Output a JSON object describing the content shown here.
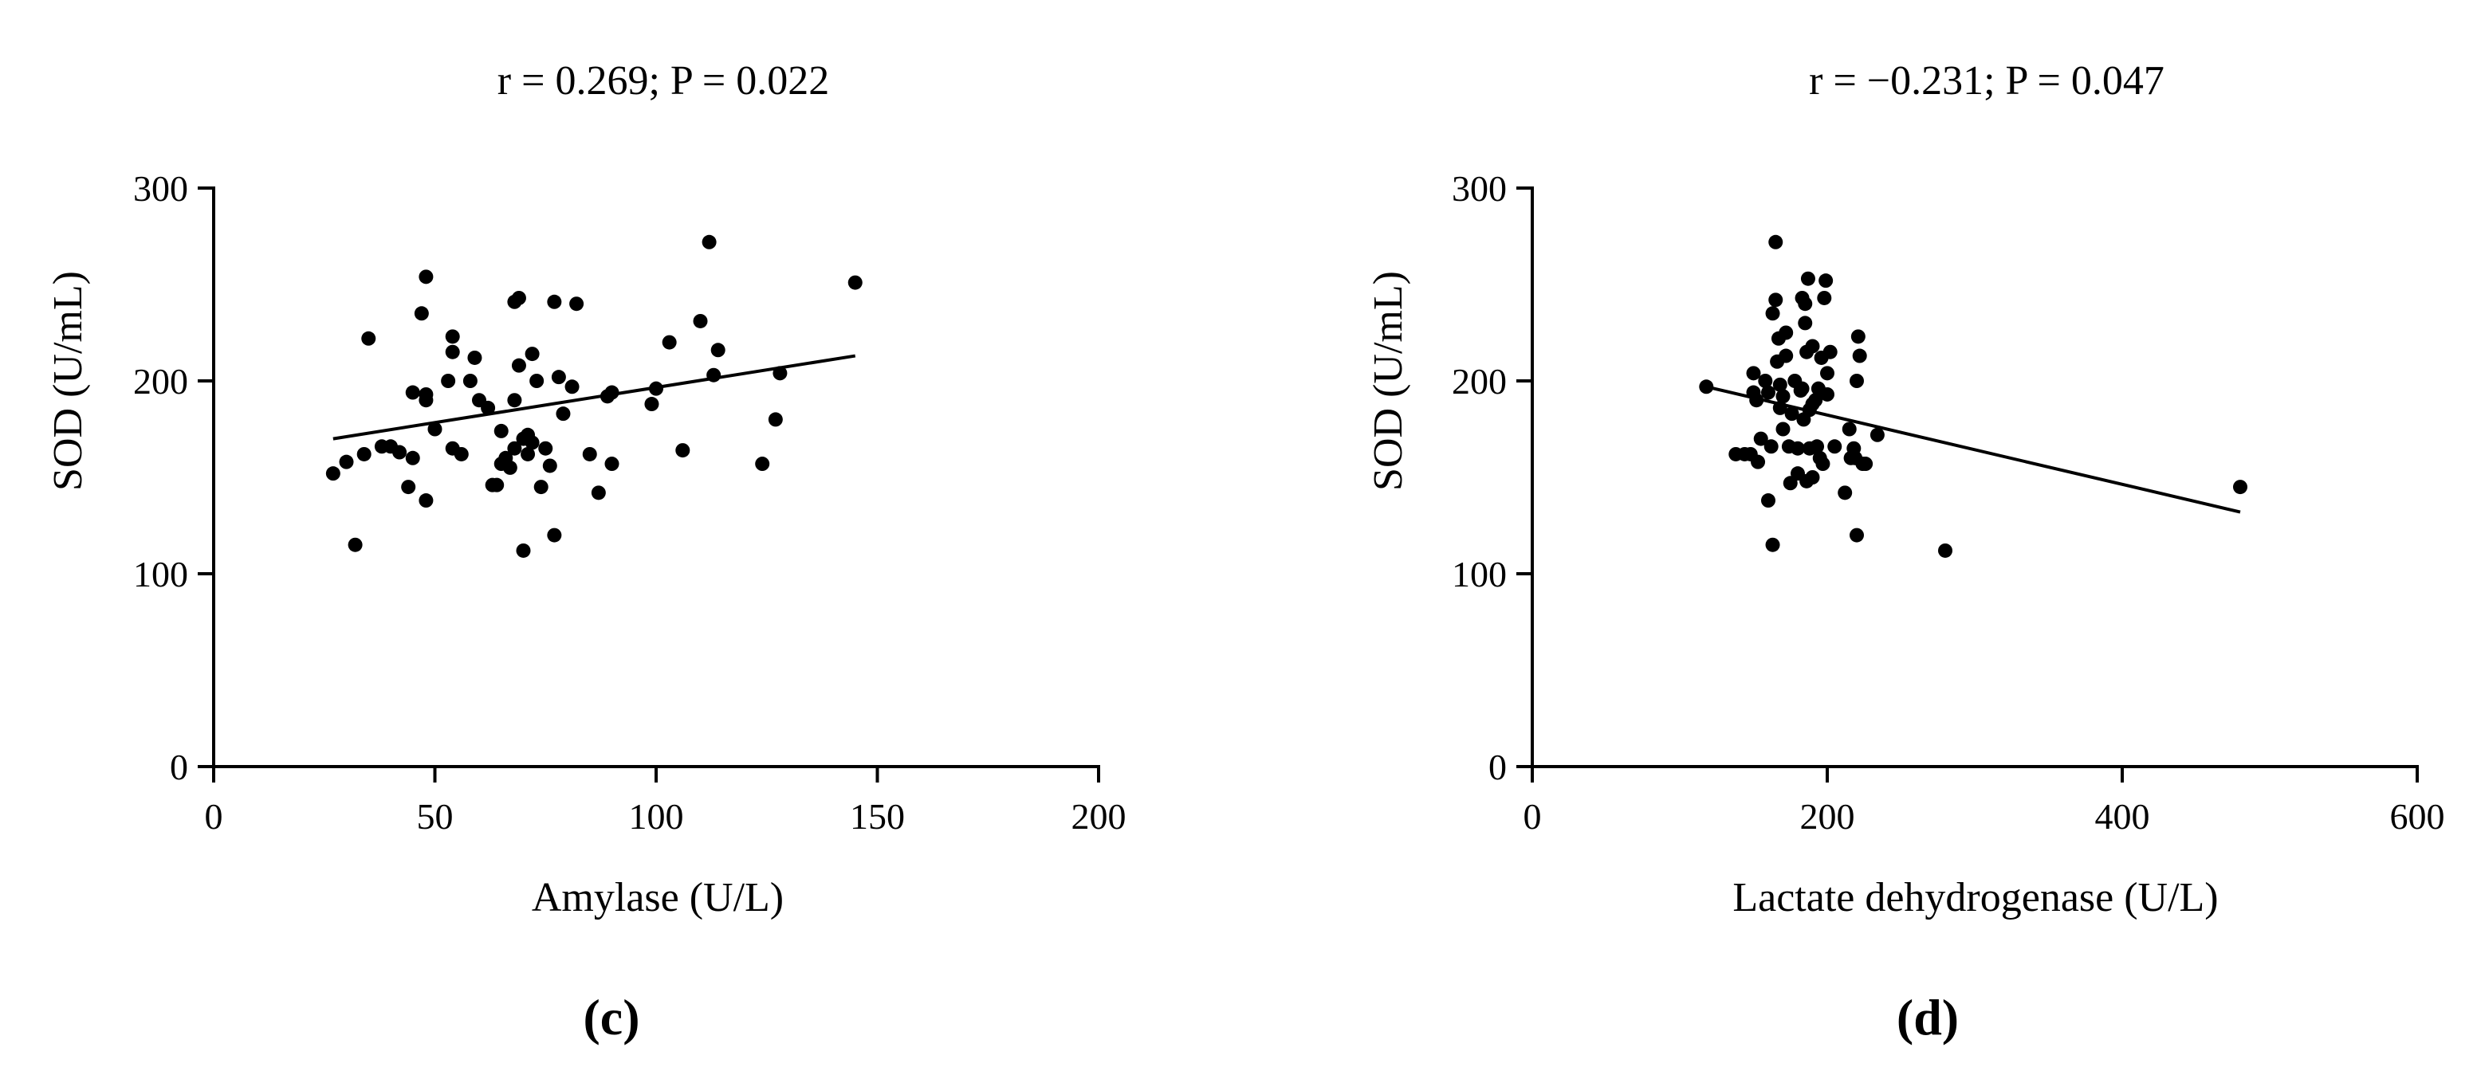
{
  "chart_data": [
    {
      "type": "scatter",
      "panel": "(c)",
      "title": "r = 0.269; P = 0.022",
      "xlabel": "Amylase (U/L)",
      "ylabel": "SOD (U/mL)",
      "xlim": [
        0,
        200
      ],
      "ylim": [
        0,
        300
      ],
      "xticks": [
        "0",
        "50",
        "100",
        "150",
        "200"
      ],
      "yticks": [
        "0",
        "100",
        "200",
        "300"
      ],
      "grid": false,
      "legend": "none",
      "trendline": {
        "x": [
          27,
          145
        ],
        "y": [
          170,
          213
        ]
      },
      "points": [
        [
          27,
          152
        ],
        [
          30,
          158
        ],
        [
          32,
          115
        ],
        [
          34,
          162
        ],
        [
          35,
          222
        ],
        [
          38,
          166
        ],
        [
          40,
          166
        ],
        [
          42,
          163
        ],
        [
          44,
          145
        ],
        [
          45,
          160
        ],
        [
          45,
          194
        ],
        [
          47,
          235
        ],
        [
          48,
          193
        ],
        [
          48,
          254
        ],
        [
          48,
          190
        ],
        [
          48,
          138
        ],
        [
          50,
          175
        ],
        [
          53,
          200
        ],
        [
          54,
          223
        ],
        [
          54,
          215
        ],
        [
          54,
          165
        ],
        [
          56,
          162
        ],
        [
          58,
          200
        ],
        [
          59,
          212
        ],
        [
          60,
          190
        ],
        [
          62,
          186
        ],
        [
          63,
          146
        ],
        [
          64,
          146
        ],
        [
          65,
          157
        ],
        [
          65,
          174
        ],
        [
          66,
          160
        ],
        [
          67,
          155
        ],
        [
          68,
          165
        ],
        [
          68,
          190
        ],
        [
          68,
          241
        ],
        [
          69,
          243
        ],
        [
          69,
          208
        ],
        [
          70,
          170
        ],
        [
          70,
          112
        ],
        [
          71,
          172
        ],
        [
          71,
          162
        ],
        [
          72,
          168
        ],
        [
          72,
          214
        ],
        [
          73,
          200
        ],
        [
          74,
          145
        ],
        [
          75,
          165
        ],
        [
          76,
          156
        ],
        [
          77,
          241
        ],
        [
          77,
          120
        ],
        [
          78,
          202
        ],
        [
          79,
          183
        ],
        [
          81,
          197
        ],
        [
          82,
          240
        ],
        [
          85,
          162
        ],
        [
          87,
          142
        ],
        [
          89,
          192
        ],
        [
          90,
          157
        ],
        [
          90,
          194
        ],
        [
          99,
          188
        ],
        [
          100,
          196
        ],
        [
          103,
          220
        ],
        [
          106,
          164
        ],
        [
          110,
          231
        ],
        [
          112,
          272
        ],
        [
          113,
          203
        ],
        [
          114,
          216
        ],
        [
          124,
          157
        ],
        [
          127,
          180
        ],
        [
          128,
          204
        ],
        [
          145,
          251
        ]
      ]
    },
    {
      "type": "scatter",
      "panel": "(d)",
      "title": "r = −0.231; P = 0.047",
      "xlabel": "Lactate dehydrogenase (U/L)",
      "ylabel": "SOD (U/mL)",
      "xlim": [
        0,
        600
      ],
      "ylim": [
        0,
        300
      ],
      "xticks": [
        "0",
        "200",
        "400",
        "600"
      ],
      "yticks": [
        "0",
        "100",
        "200",
        "300"
      ],
      "grid": false,
      "legend": "none",
      "trendline": {
        "x": [
          118,
          480
        ],
        "y": [
          197,
          132
        ]
      },
      "points": [
        [
          118,
          197
        ],
        [
          138,
          162
        ],
        [
          144,
          162
        ],
        [
          148,
          162
        ],
        [
          150,
          194
        ],
        [
          150,
          204
        ],
        [
          152,
          190
        ],
        [
          153,
          158
        ],
        [
          155,
          170
        ],
        [
          158,
          200
        ],
        [
          160,
          194
        ],
        [
          160,
          138
        ],
        [
          162,
          166
        ],
        [
          163,
          235
        ],
        [
          163,
          115
        ],
        [
          165,
          272
        ],
        [
          165,
          242
        ],
        [
          166,
          210
        ],
        [
          167,
          222
        ],
        [
          168,
          198
        ],
        [
          168,
          186
        ],
        [
          170,
          192
        ],
        [
          170,
          175
        ],
        [
          172,
          213
        ],
        [
          172,
          225
        ],
        [
          174,
          166
        ],
        [
          175,
          147
        ],
        [
          176,
          183
        ],
        [
          178,
          200
        ],
        [
          180,
          165
        ],
        [
          180,
          152
        ],
        [
          182,
          195
        ],
        [
          183,
          243
        ],
        [
          183,
          196
        ],
        [
          184,
          180
        ],
        [
          185,
          240
        ],
        [
          185,
          230
        ],
        [
          186,
          215
        ],
        [
          186,
          148
        ],
        [
          187,
          253
        ],
        [
          188,
          185
        ],
        [
          188,
          165
        ],
        [
          190,
          218
        ],
        [
          190,
          188
        ],
        [
          190,
          150
        ],
        [
          192,
          190
        ],
        [
          193,
          166
        ],
        [
          194,
          196
        ],
        [
          195,
          160
        ],
        [
          196,
          212
        ],
        [
          197,
          157
        ],
        [
          198,
          243
        ],
        [
          199,
          252
        ],
        [
          200,
          204
        ],
        [
          200,
          193
        ],
        [
          202,
          215
        ],
        [
          205,
          166
        ],
        [
          212,
          142
        ],
        [
          215,
          175
        ],
        [
          216,
          160
        ],
        [
          218,
          165
        ],
        [
          219,
          160
        ],
        [
          220,
          200
        ],
        [
          220,
          120
        ],
        [
          221,
          223
        ],
        [
          222,
          213
        ],
        [
          224,
          157
        ],
        [
          226,
          157
        ],
        [
          234,
          172
        ],
        [
          280,
          112
        ],
        [
          480,
          145
        ]
      ]
    }
  ]
}
